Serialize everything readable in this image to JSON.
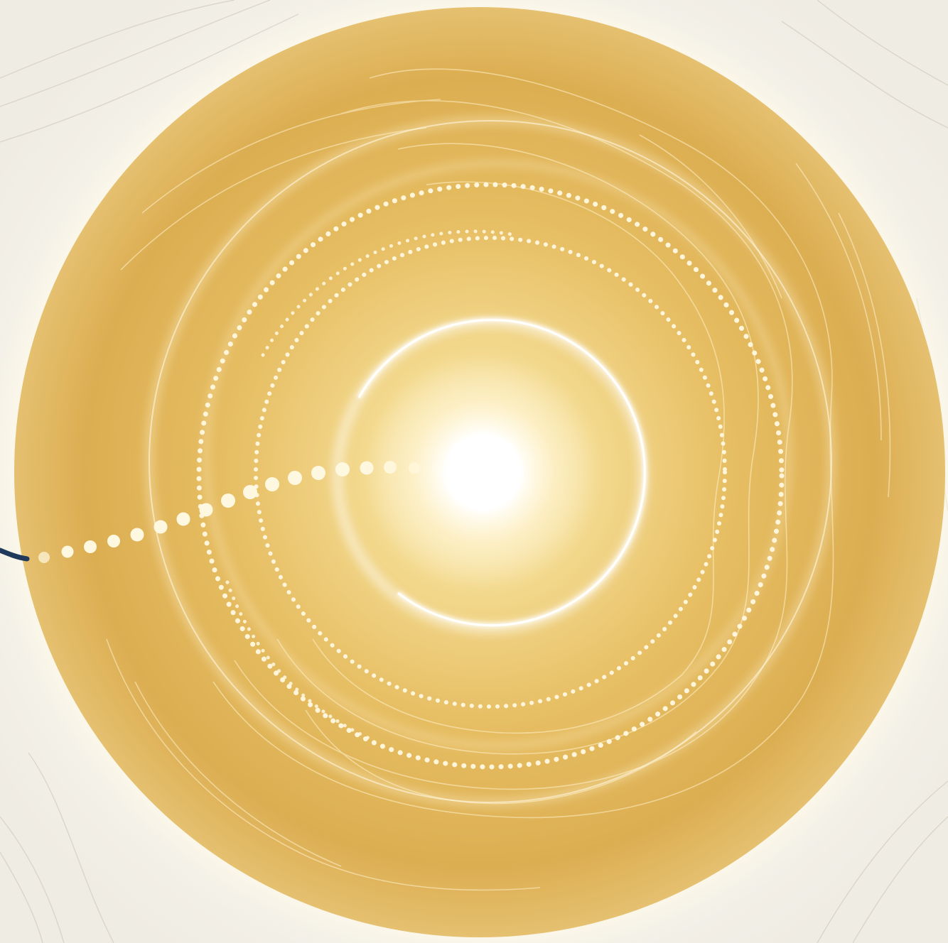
{
  "scene": {
    "description_tag": "",
    "colors": {
      "background": "#f6f3ea",
      "disc_outer": "#dcae52",
      "disc_mid": "#e9c772",
      "disc_inner": "#f6e3a8",
      "core_glow": "#ffffff",
      "dots": "#fff8e0",
      "contour_lines": "#c9c2b2",
      "cable": "#1f3a5a"
    },
    "dotted_rings": 3,
    "solid_glow_rings": 2
  }
}
